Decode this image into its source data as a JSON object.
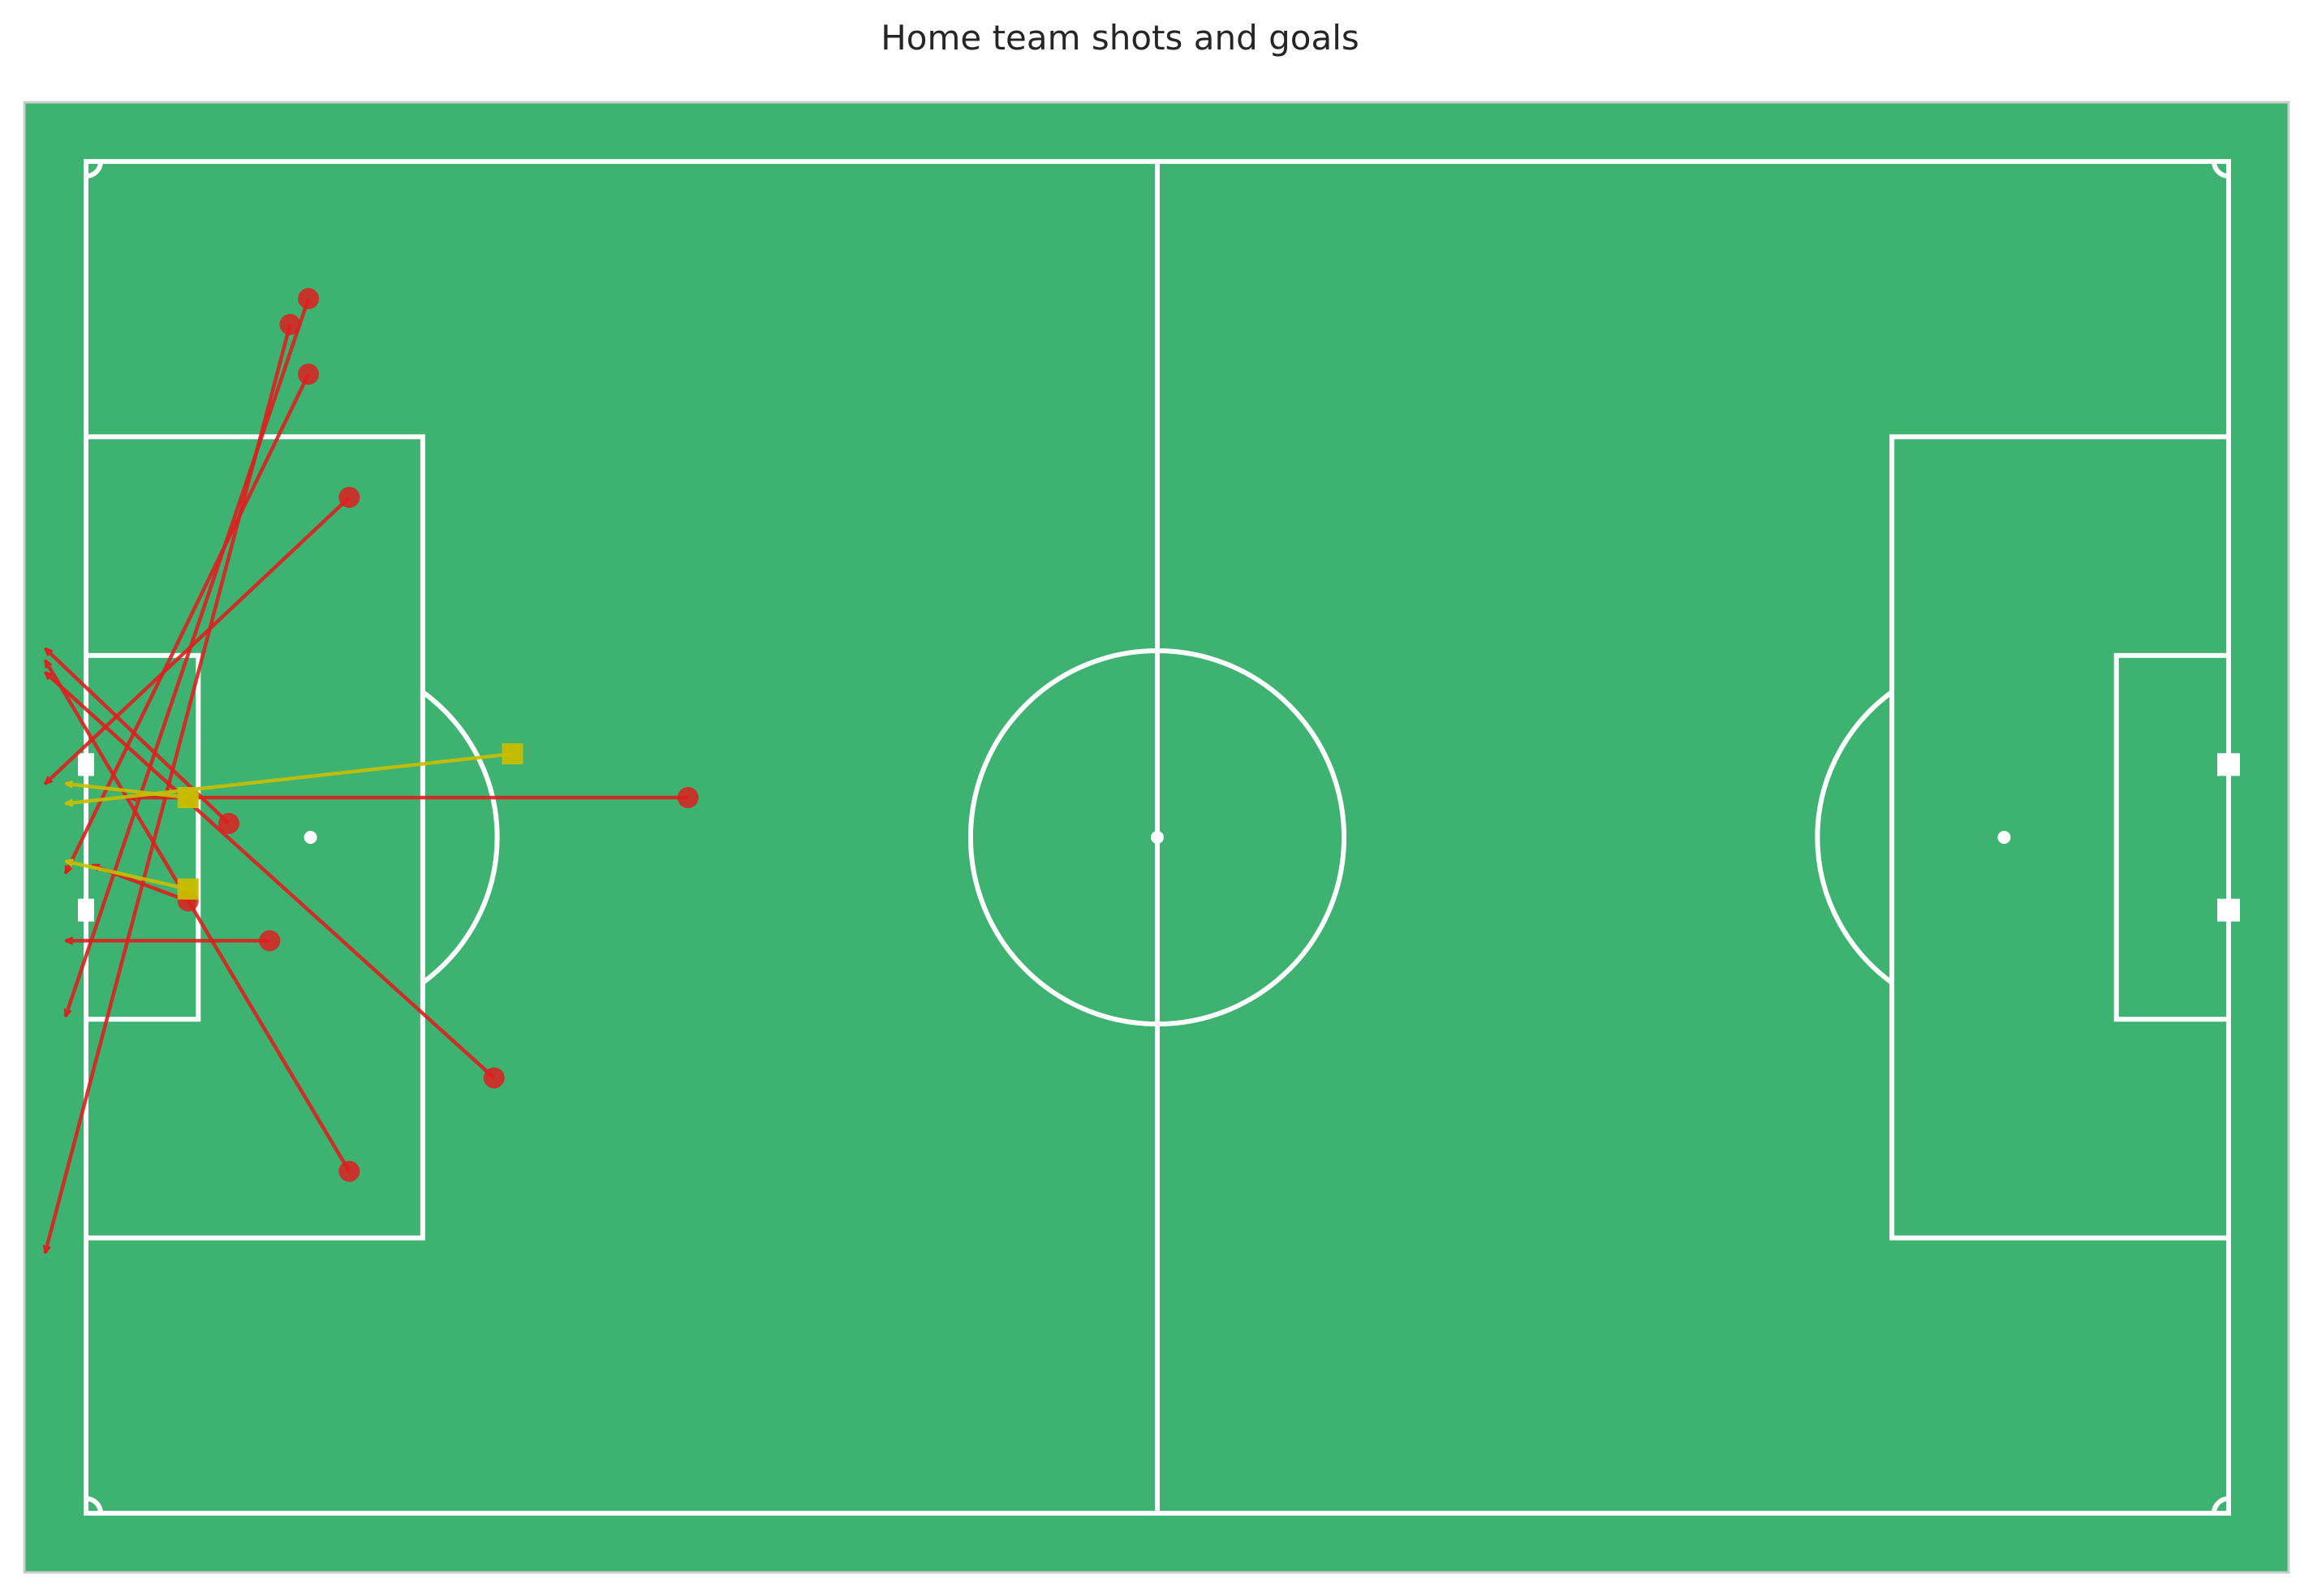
{
  "chart_data": {
    "type": "scatter",
    "title": "Home team shots and goals",
    "xlabel": "",
    "ylabel": "",
    "xlim": [
      0,
      105
    ],
    "ylim": [
      0,
      68
    ],
    "grid": false,
    "colors": {
      "pitch": "#3db271",
      "lines": "#ffffff",
      "shot": "#dd1f1f",
      "goal": "#c9bd00"
    },
    "series": [
      {
        "marker": "circle",
        "color": "#dd1f1f",
        "points": [
          {
            "x": 12.9,
            "y": 16.9,
            "end_x": -2.0,
            "end_y": 31.3
          },
          {
            "x": 10.9,
            "y": 10.7,
            "end_x": -1.0,
            "end_y": 35.8
          },
          {
            "x": 10.9,
            "y": 6.9,
            "end_x": -1.0,
            "end_y": 43.0
          },
          {
            "x": 10.0,
            "y": 8.2,
            "end_x": -2.0,
            "end_y": 54.9
          },
          {
            "x": 29.5,
            "y": 32.0,
            "end_x": 2.1,
            "end_y": 32.0
          },
          {
            "x": 7.0,
            "y": 33.3,
            "end_x": -2.0,
            "end_y": 24.5
          },
          {
            "x": 5.0,
            "y": 37.2,
            "end_x": 0.3,
            "end_y": 35.4
          },
          {
            "x": 9.0,
            "y": 39.2,
            "end_x": -1.0,
            "end_y": 39.2
          },
          {
            "x": 20.0,
            "y": 46.1,
            "end_x": -2.0,
            "end_y": 25.7
          },
          {
            "x": 12.9,
            "y": 50.8,
            "end_x": -2.0,
            "end_y": 25.1
          }
        ]
      },
      {
        "marker": "square",
        "color": "#c9bd00",
        "points": [
          {
            "x": 20.9,
            "y": 29.8,
            "end_x": -1.0,
            "end_y": 32.3
          },
          {
            "x": 5.0,
            "y": 32.0,
            "end_x": -1.0,
            "end_y": 31.3
          },
          {
            "x": 5.0,
            "y": 36.6,
            "end_x": -1.0,
            "end_y": 35.2
          }
        ]
      }
    ]
  }
}
